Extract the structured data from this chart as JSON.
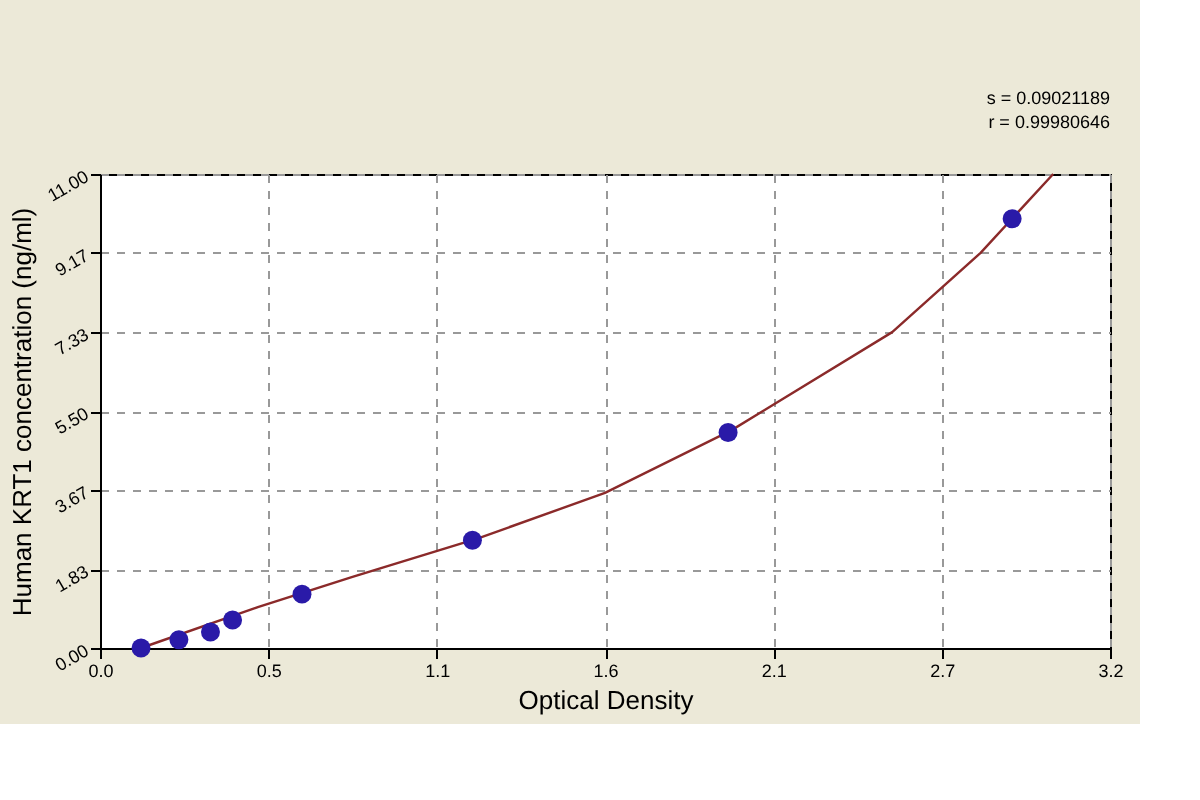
{
  "chart_data": {
    "type": "scatter",
    "xlabel": "Optical Density",
    "ylabel": "Human KRT1 concentration (ng/ml)",
    "annotations": [
      "s = 0.09021189",
      "r = 0.99980646"
    ],
    "xlim": [
      0,
      3.2
    ],
    "ylim": [
      0,
      11
    ],
    "xticks": [
      {
        "value": 0,
        "label": "0.0"
      },
      {
        "value": 0.533,
        "label": "0.5"
      },
      {
        "value": 1.067,
        "label": "1.1"
      },
      {
        "value": 1.6,
        "label": "1.6"
      },
      {
        "value": 2.133,
        "label": "2.1"
      },
      {
        "value": 2.667,
        "label": "2.7"
      },
      {
        "value": 3.2,
        "label": "3.2"
      }
    ],
    "yticks": [
      {
        "value": 0,
        "label": "0.00"
      },
      {
        "value": 1.833,
        "label": "1.83"
      },
      {
        "value": 3.667,
        "label": "3.67"
      },
      {
        "value": 5.5,
        "label": "5.50"
      },
      {
        "value": 7.333,
        "label": "7.33"
      },
      {
        "value": 9.167,
        "label": "9.17"
      },
      {
        "value": 11,
        "label": "11.00"
      }
    ],
    "grid": true,
    "legend": false,
    "series": [
      {
        "type": "line",
        "color": "#8b2a2a",
        "marker": "none",
        "line_style": "solid",
        "x": [
          0.13,
          0.5,
          0.8,
          1.2,
          1.6,
          2.0,
          2.51,
          2.79,
          3.02
        ],
        "values": [
          0,
          0.95,
          1.65,
          2.55,
          3.6,
          5.05,
          7.33,
          9.17,
          11
        ]
      },
      {
        "color": "#2a1aa8",
        "marker": "circle",
        "x": [
          0.13,
          0.25,
          0.35,
          0.42,
          0.64,
          1.18,
          1.99,
          2.89
        ],
        "values": [
          0,
          0.19,
          0.37,
          0.65,
          1.25,
          2.5,
          5.0,
          9.96
        ]
      }
    ]
  }
}
